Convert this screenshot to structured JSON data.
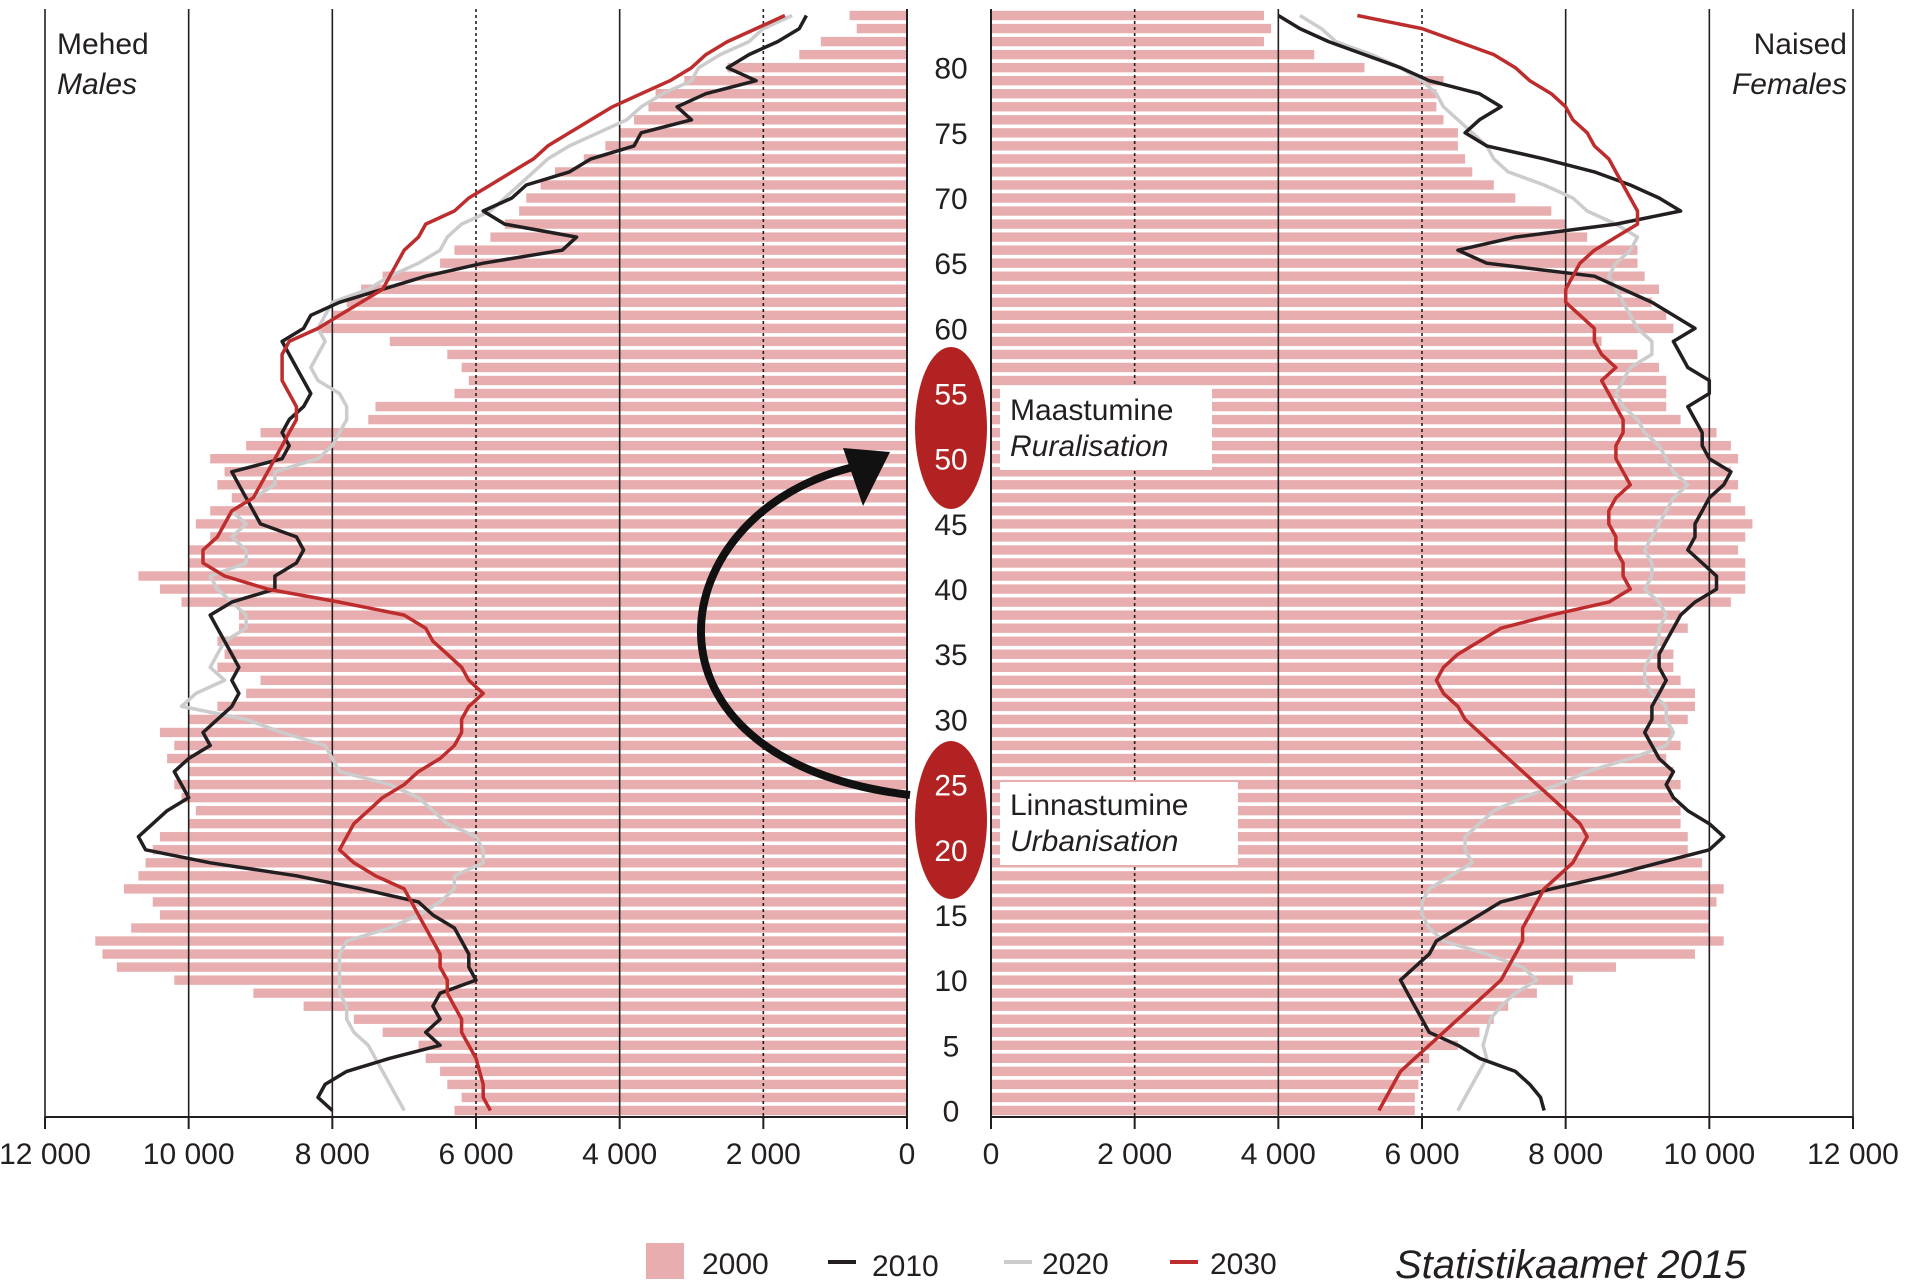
{
  "chart_data": {
    "type": "population-pyramid",
    "left_label": {
      "line1": "Mehed",
      "line2": "Males"
    },
    "right_label": {
      "line1": "Naised",
      "line2": "Females"
    },
    "x_ticks": [
      {
        "v": 0,
        "text": "0"
      },
      {
        "v": 2000,
        "text": "2 000"
      },
      {
        "v": 4000,
        "text": "4 000"
      },
      {
        "v": 6000,
        "text": "6 000"
      },
      {
        "v": 8000,
        "text": "8 000"
      },
      {
        "v": 10000,
        "text": "10 000"
      },
      {
        "v": 12000,
        "text": "12 000"
      }
    ],
    "xlim": [
      0,
      12000
    ],
    "ylim": [
      0,
      85
    ],
    "age_ticks": [
      0,
      5,
      10,
      15,
      20,
      25,
      30,
      35,
      40,
      45,
      50,
      55,
      60,
      65,
      70,
      75,
      80
    ],
    "legend": [
      {
        "key": "2000",
        "label": "2000",
        "style": "bar",
        "color": "#e8aeaf"
      },
      {
        "key": "2010",
        "label": "2010",
        "style": "line",
        "color": "#231f20"
      },
      {
        "key": "2020",
        "label": "2020",
        "style": "line",
        "color": "#cccccc"
      },
      {
        "key": "2030",
        "label": "2030",
        "style": "line",
        "color": "#be2d2d"
      }
    ],
    "annotations": {
      "ruralisation": {
        "line1": "Maastumine",
        "line2": "Ruralisation",
        "ages": [
          55,
          50
        ]
      },
      "urbanisation": {
        "line1": "Linnastumine",
        "line2": "Urbanisation",
        "ages": [
          25,
          20
        ]
      }
    },
    "source": "Statistikaamet 2015",
    "ages": [
      0,
      1,
      2,
      3,
      4,
      5,
      6,
      7,
      8,
      9,
      10,
      11,
      12,
      13,
      14,
      15,
      16,
      17,
      18,
      19,
      20,
      21,
      22,
      23,
      24,
      25,
      26,
      27,
      28,
      29,
      30,
      31,
      32,
      33,
      34,
      35,
      36,
      37,
      38,
      39,
      40,
      41,
      42,
      43,
      44,
      45,
      46,
      47,
      48,
      49,
      50,
      51,
      52,
      53,
      54,
      55,
      56,
      57,
      58,
      59,
      60,
      61,
      62,
      63,
      64,
      65,
      66,
      67,
      68,
      69,
      70,
      71,
      72,
      73,
      74,
      75,
      76,
      77,
      78,
      79,
      80,
      81,
      82,
      83,
      84
    ],
    "males_2000": [
      6300,
      6200,
      6400,
      6500,
      6700,
      6800,
      7300,
      7700,
      8400,
      9100,
      10200,
      11000,
      11200,
      11300,
      10800,
      10400,
      10500,
      10900,
      10700,
      10600,
      10500,
      10400,
      10000,
      9900,
      10100,
      10200,
      10000,
      10300,
      10200,
      10400,
      10000,
      9600,
      9200,
      9000,
      9600,
      9500,
      9600,
      9300,
      9300,
      10100,
      10400,
      10700,
      10000,
      10000,
      9700,
      9900,
      9700,
      9400,
      9600,
      9500,
      9700,
      9200,
      9000,
      7500,
      7400,
      6300,
      6100,
      6200,
      6400,
      7200,
      8200,
      8000,
      7800,
      7600,
      7300,
      6500,
      6300,
      5800,
      5600,
      5400,
      5300,
      5100,
      4900,
      4500,
      4200,
      4000,
      3800,
      3600,
      3500,
      3100,
      2500,
      1500,
      1200,
      700,
      800
    ],
    "males_2010": [
      8000,
      8200,
      8100,
      7800,
      7200,
      6500,
      6700,
      6500,
      6600,
      6500,
      6000,
      6100,
      6100,
      6200,
      6300,
      6600,
      6800,
      7600,
      8500,
      9700,
      10600,
      10700,
      10500,
      10300,
      10000,
      10100,
      10200,
      10000,
      9700,
      9800,
      9600,
      9400,
      9300,
      9400,
      9300,
      9400,
      9500,
      9600,
      9700,
      9400,
      8800,
      8800,
      8500,
      8400,
      8500,
      9000,
      9100,
      9200,
      9300,
      9400,
      8700,
      8600,
      8700,
      8600,
      8400,
      8300,
      8400,
      8500,
      8600,
      8700,
      8400,
      8300,
      7900,
      7300,
      6700,
      5900,
      4800,
      4600,
      5600,
      5900,
      5500,
      5300,
      4700,
      4400,
      3800,
      3700,
      3000,
      3200,
      2800,
      2100,
      2500,
      2200,
      1800,
      1500,
      1400
    ],
    "males_2020": [
      7000,
      7100,
      7200,
      7300,
      7400,
      7500,
      7700,
      7800,
      7800,
      7900,
      7900,
      7900,
      7900,
      7800,
      7200,
      6800,
      6500,
      6300,
      6300,
      5900,
      5900,
      6000,
      6400,
      6600,
      6800,
      7200,
      7900,
      8000,
      8100,
      8700,
      9200,
      10100,
      9900,
      9500,
      9700,
      9600,
      9500,
      9200,
      9200,
      9400,
      9600,
      9700,
      9200,
      9200,
      9400,
      9200,
      9400,
      9100,
      8800,
      8800,
      8200,
      8000,
      7900,
      7800,
      7800,
      7900,
      8200,
      8300,
      8200,
      8100,
      8200,
      8100,
      8000,
      7500,
      7200,
      6800,
      6500,
      6400,
      6200,
      5800,
      5600,
      5400,
      5200,
      5000,
      4700,
      4300,
      3900,
      3700,
      3400,
      3000,
      2900,
      2600,
      2200,
      2000,
      1600
    ],
    "males_2030": [
      5800,
      5900,
      5900,
      5950,
      6000,
      6100,
      6200,
      6200,
      6300,
      6400,
      6400,
      6500,
      6500,
      6600,
      6700,
      6800,
      6900,
      7000,
      7400,
      7700,
      7900,
      7800,
      7700,
      7500,
      7300,
      7000,
      6800,
      6500,
      6300,
      6200,
      6200,
      6100,
      5900,
      6100,
      6200,
      6400,
      6600,
      6700,
      7000,
      7900,
      8900,
      9500,
      9800,
      9800,
      9600,
      9500,
      9400,
      9100,
      9000,
      8900,
      8800,
      8700,
      8600,
      8500,
      8500,
      8600,
      8700,
      8700,
      8700,
      8600,
      8200,
      7900,
      7600,
      7300,
      7200,
      7100,
      7000,
      6800,
      6700,
      6300,
      6100,
      5800,
      5500,
      5200,
      5000,
      4700,
      4400,
      4100,
      3700,
      3300,
      3000,
      2800,
      2500,
      2100,
      1700
    ],
    "females_2000": [
      5900,
      5900,
      5950,
      6000,
      6100,
      6500,
      6800,
      7000,
      7200,
      7600,
      8100,
      8700,
      9800,
      10200,
      10000,
      10000,
      10100,
      10200,
      10000,
      9900,
      9700,
      9700,
      9600,
      9600,
      9500,
      9600,
      9500,
      9400,
      9600,
      9500,
      9700,
      9800,
      9800,
      9600,
      9500,
      9500,
      9400,
      9700,
      9600,
      10300,
      10500,
      10500,
      10500,
      10400,
      10500,
      10600,
      10500,
      10300,
      10400,
      10300,
      10400,
      10300,
      10100,
      9600,
      9400,
      9400,
      9400,
      9300,
      9000,
      8500,
      9500,
      9400,
      9200,
      9300,
      9100,
      9000,
      9000,
      8300,
      8000,
      7800,
      7300,
      7000,
      6700,
      6600,
      6500,
      6500,
      6300,
      6200,
      6200,
      6300,
      5200,
      4500,
      3800,
      3900,
      3800
    ],
    "females_2010": [
      7700,
      7650,
      7500,
      7300,
      6800,
      6500,
      6100,
      6000,
      5900,
      5800,
      5700,
      5900,
      6100,
      6200,
      6500,
      6800,
      7100,
      7800,
      8600,
      9300,
      10000,
      10200,
      10000,
      9700,
      9500,
      9400,
      9500,
      9300,
      9200,
      9100,
      9200,
      9200,
      9300,
      9400,
      9300,
      9300,
      9400,
      9500,
      9600,
      9800,
      10100,
      10100,
      9900,
      9700,
      9800,
      9800,
      9900,
      10000,
      10200,
      10300,
      10000,
      9900,
      9900,
      9800,
      9700,
      10000,
      10000,
      9700,
      9600,
      9500,
      9800,
      9500,
      9200,
      8800,
      8400,
      6900,
      6500,
      7300,
      8700,
      9600,
      9300,
      8900,
      8400,
      7700,
      6900,
      6600,
      6800,
      7100,
      6800,
      6100,
      5700,
      5200,
      4700,
      4300,
      4000
    ],
    "females_2020": [
      6500,
      6600,
      6700,
      6800,
      6900,
      6850,
      6900,
      6950,
      7100,
      7300,
      7600,
      7400,
      6900,
      6300,
      6100,
      6000,
      6000,
      6100,
      6400,
      6700,
      6600,
      6600,
      6800,
      7000,
      7400,
      7900,
      8300,
      8900,
      9400,
      9500,
      9400,
      9400,
      9200,
      9100,
      9100,
      9200,
      9300,
      9300,
      9400,
      9300,
      9100,
      9200,
      9200,
      9100,
      9200,
      9300,
      9400,
      9500,
      9700,
      9500,
      9400,
      9300,
      9100,
      9000,
      8800,
      8700,
      8800,
      8900,
      9200,
      9200,
      9000,
      8900,
      8800,
      8700,
      8600,
      8700,
      8900,
      9000,
      8700,
      8300,
      8100,
      7700,
      7200,
      7000,
      6900,
      6700,
      6500,
      6300,
      6200,
      6000,
      5700,
      5300,
      4800,
      4600,
      4300
    ],
    "females_2030": [
      5400,
      5500,
      5600,
      5700,
      5900,
      6100,
      6300,
      6500,
      6700,
      6900,
      7100,
      7200,
      7300,
      7400,
      7400,
      7500,
      7600,
      7700,
      7900,
      8100,
      8200,
      8300,
      8200,
      8000,
      7800,
      7600,
      7400,
      7200,
      7000,
      6800,
      6600,
      6500,
      6300,
      6200,
      6300,
      6500,
      6800,
      7100,
      7800,
      8600,
      8900,
      8800,
      8800,
      8700,
      8700,
      8600,
      8600,
      8700,
      8900,
      8800,
      8700,
      8700,
      8800,
      8800,
      8700,
      8600,
      8500,
      8700,
      8500,
      8400,
      8400,
      8200,
      8000,
      8000,
      8100,
      8200,
      8400,
      8700,
      9000,
      9000,
      8900,
      8800,
      8700,
      8600,
      8400,
      8300,
      8100,
      8000,
      7800,
      7500,
      7300,
      7000,
      6500,
      6000,
      5100
    ]
  }
}
